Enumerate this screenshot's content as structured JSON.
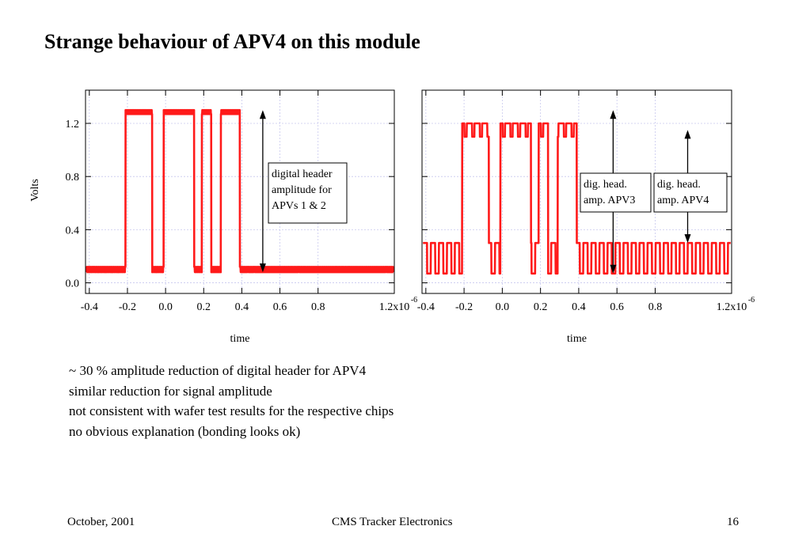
{
  "slide": {
    "title": "Strange behaviour of APV4 on this module",
    "bullets": [
      "~ 30 % amplitude reduction of digital header for APV4",
      "similar reduction for signal amplitude",
      "not consistent with wafer test results for the respective chips",
      "no obvious explanation (bonding looks ok)"
    ],
    "footer": {
      "left": "October, 2001",
      "center": "CMS Tracker Electronics",
      "right": "16"
    }
  },
  "colors": {
    "trace": "#ff1a1a",
    "grid": "#c8c8ee",
    "axis": "#000000"
  },
  "chart_data": [
    {
      "type": "line",
      "xlabel": "time",
      "ylabel": "Volts",
      "x_unit_label": "1.2x10",
      "x_exponent": "-6",
      "xlim": [
        -0.42,
        1.2
      ],
      "ylim": [
        -0.08,
        1.45
      ],
      "x_ticks": [
        -0.4,
        -0.2,
        0.0,
        0.2,
        0.4,
        0.6,
        0.8,
        1.2
      ],
      "x_tick_labels": [
        "-0.4",
        "-0.2",
        "0.0",
        "0.2",
        "0.4",
        "0.6",
        "0.8",
        ""
      ],
      "y_ticks": [
        0.0,
        0.4,
        0.8,
        1.2
      ],
      "y_tick_labels": [
        "0.0",
        "0.4",
        "0.8",
        "1.2"
      ],
      "grid": true,
      "series": [
        {
          "low": 0.08,
          "high": 1.3,
          "pulses": [
            [
              -0.21,
              -0.07
            ],
            [
              -0.01,
              0.15
            ],
            [
              0.19,
              0.24
            ],
            [
              0.29,
              0.39
            ]
          ],
          "ripple_high": "fine",
          "ripple_low": "fine"
        }
      ],
      "annotations": [
        {
          "text_lines": [
            "digital header",
            "amplitude for",
            "APVs 1 & 2"
          ],
          "arrow_x": 0.51,
          "from": 0.08,
          "to": 1.3
        }
      ]
    },
    {
      "type": "line",
      "xlabel": "time",
      "ylabel": "",
      "x_unit_label": "1.2x10",
      "x_exponent": "-6",
      "xlim": [
        -0.42,
        1.2
      ],
      "ylim": [
        -0.08,
        1.45
      ],
      "x_ticks": [
        -0.4,
        -0.2,
        0.0,
        0.2,
        0.4,
        0.6,
        0.8,
        1.2
      ],
      "x_tick_labels": [
        "-0.4",
        "-0.2",
        "0.0",
        "0.2",
        "0.4",
        "0.6",
        "0.8",
        ""
      ],
      "y_ticks": [
        0.0,
        0.4,
        0.8,
        1.2
      ],
      "grid": true,
      "series": [
        {
          "low": 0.07,
          "high": 1.2,
          "low_ripple_amp": 0.23,
          "pulses": [
            [
              -0.21,
              -0.07
            ],
            [
              -0.01,
              0.15
            ],
            [
              0.19,
              0.24
            ],
            [
              0.29,
              0.39
            ]
          ],
          "ripple_high": "coarse",
          "ripple_low": "square"
        }
      ],
      "annotations": [
        {
          "text_lines": [
            "dig. head.",
            "amp. APV3"
          ],
          "arrow_x": 0.58,
          "from": 0.07,
          "to": 1.3
        },
        {
          "text_lines": [
            "dig. head.",
            "amp. APV4"
          ],
          "arrow_x": 0.97,
          "from": 0.3,
          "to": 1.15
        }
      ]
    }
  ]
}
